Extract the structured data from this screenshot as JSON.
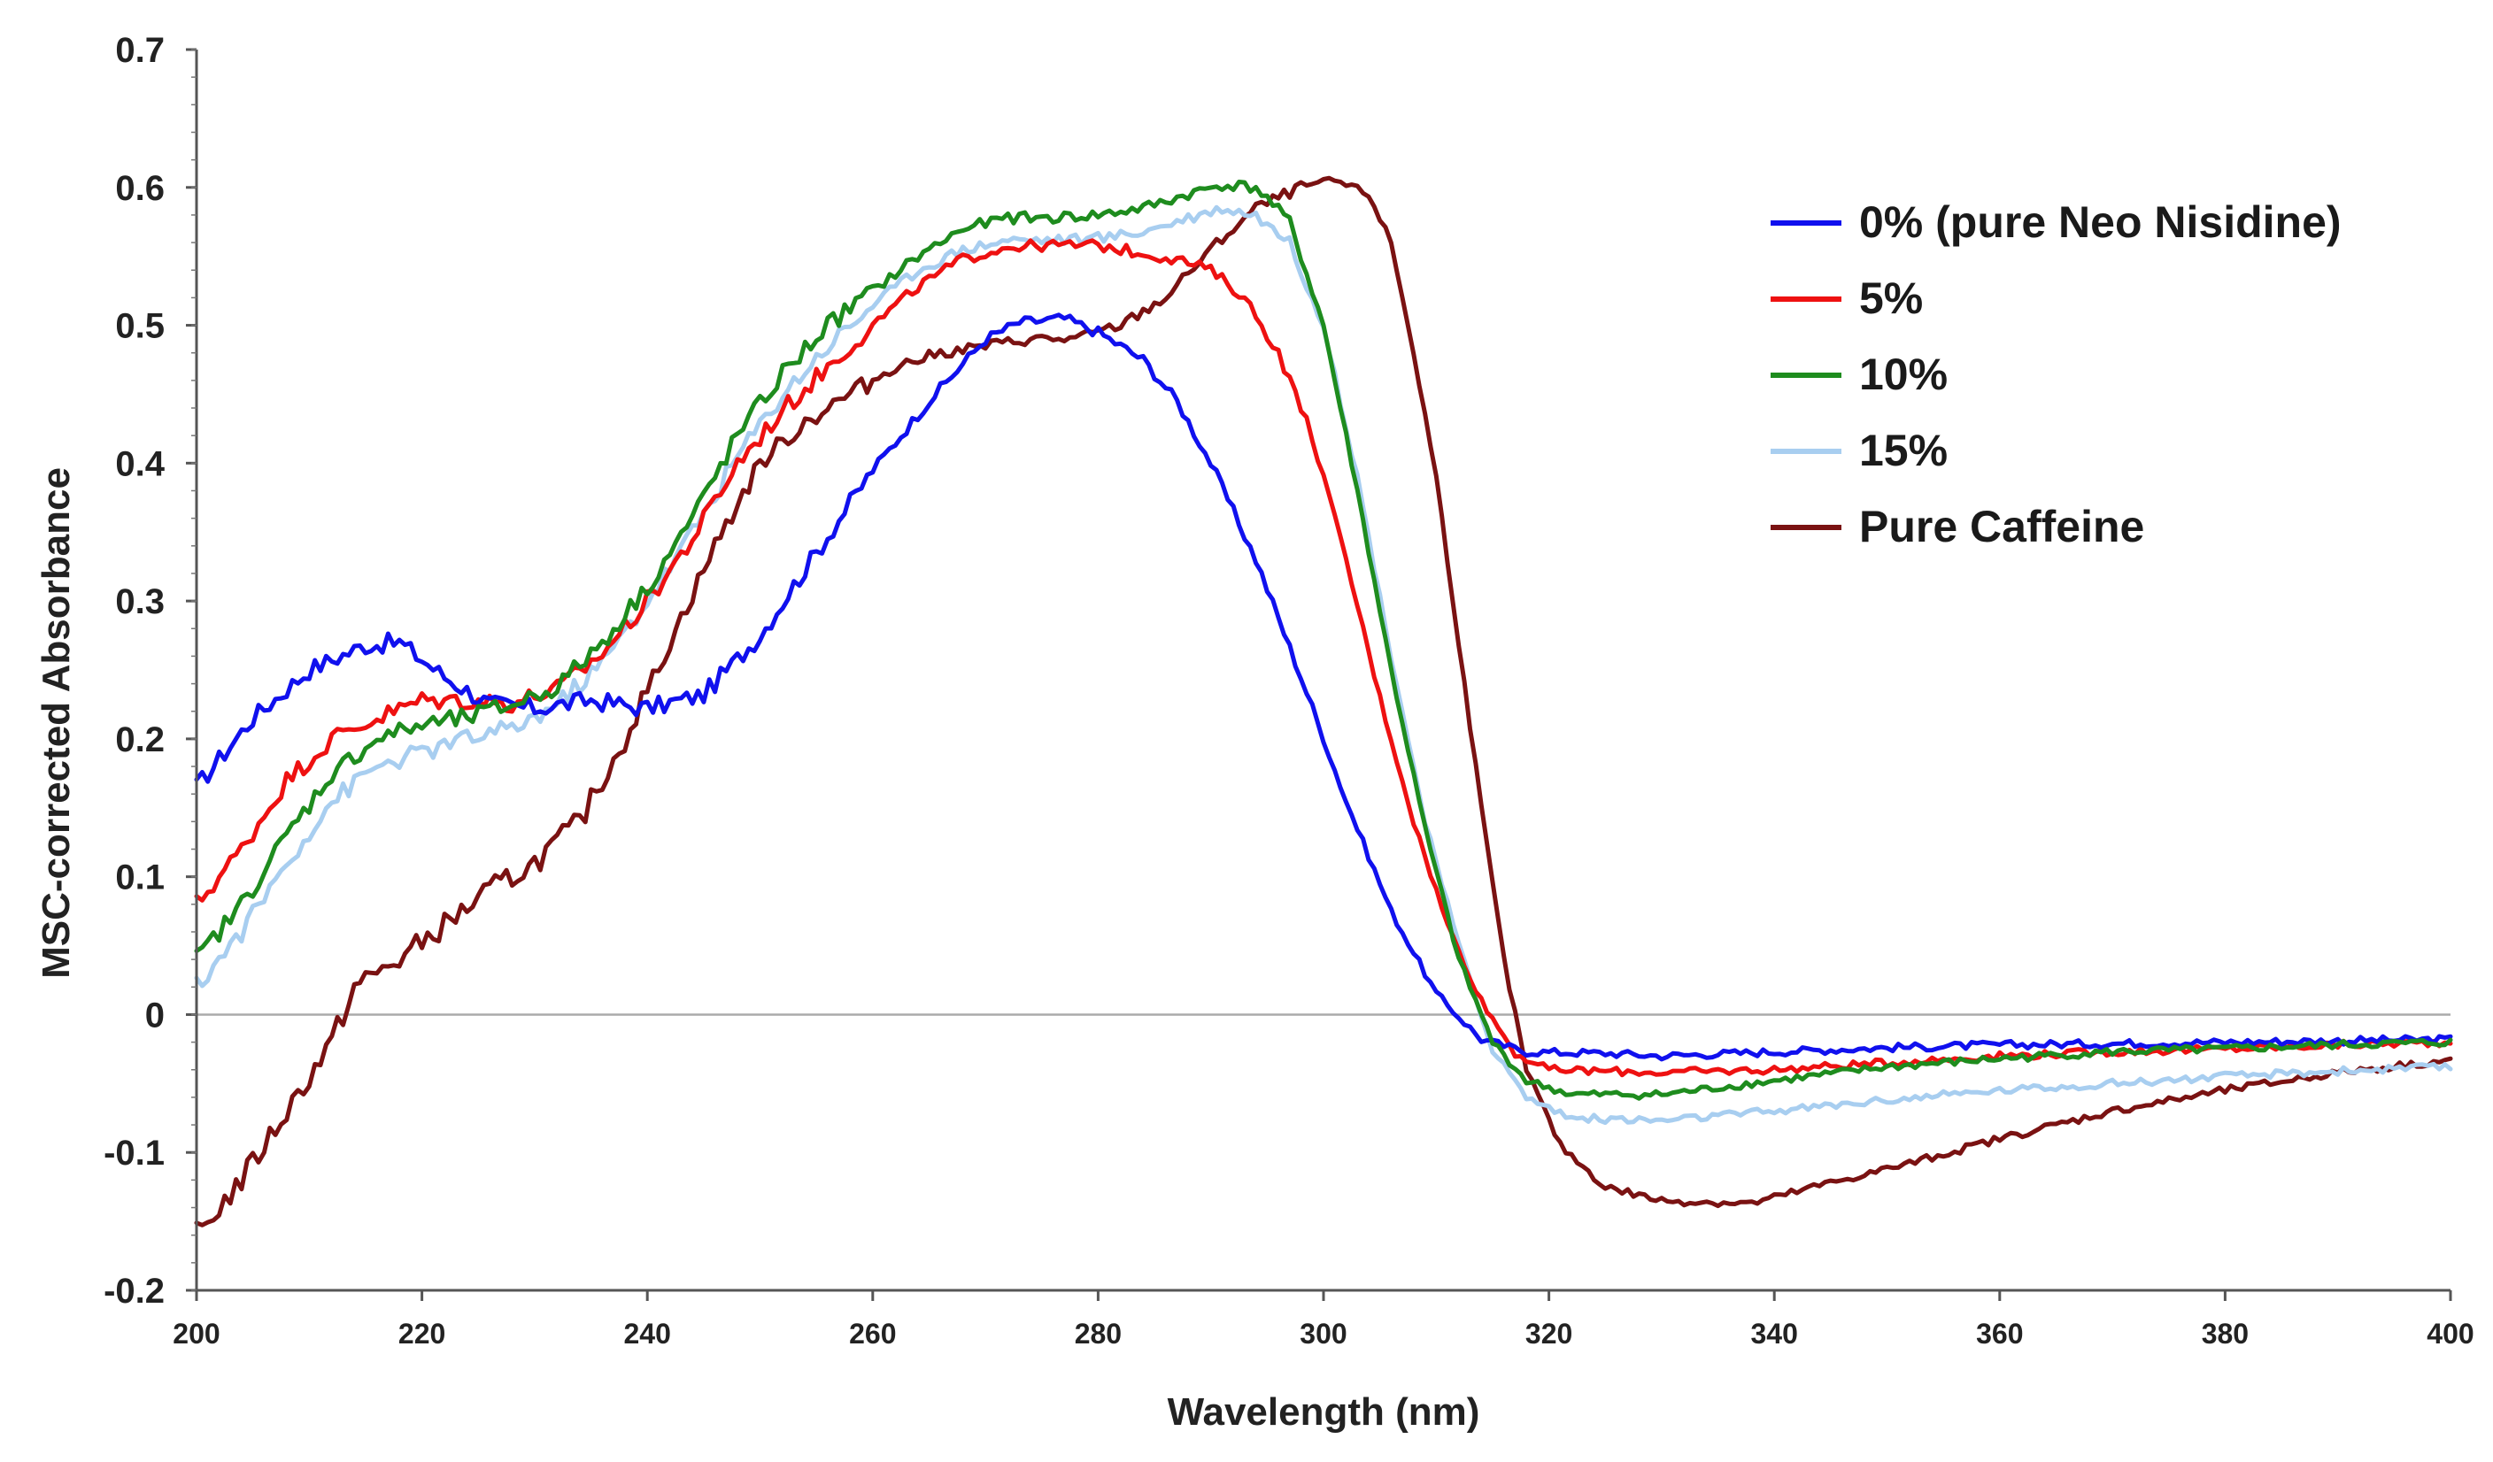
{
  "chart_data": {
    "type": "line",
    "title": "",
    "xlabel": "Wavelength (nm)",
    "ylabel": "MSC-corrected Absorbance",
    "xlim": [
      200,
      400
    ],
    "ylim": [
      -0.2,
      0.7
    ],
    "xticks": [
      200,
      220,
      240,
      260,
      280,
      300,
      320,
      340,
      360,
      380,
      400
    ],
    "yticks": [
      -0.2,
      -0.1,
      0,
      0.1,
      0.2,
      0.3,
      0.4,
      0.5,
      0.6,
      0.7
    ],
    "ytick_labels": [
      "-0.2",
      "-0.1",
      "0",
      "0.1",
      "0.2",
      "0.3",
      "0.4",
      "0.5",
      "0.6",
      "0.7"
    ],
    "zero_line": true,
    "legend_position": "top-right",
    "series": [
      {
        "name": "0% (pure Neo Nisidine)",
        "color": "#1010ee",
        "points": [
          [
            200,
            0.165
          ],
          [
            205,
            0.215
          ],
          [
            210,
            0.25
          ],
          [
            215,
            0.268
          ],
          [
            218,
            0.27
          ],
          [
            222,
            0.245
          ],
          [
            226,
            0.225
          ],
          [
            230,
            0.222
          ],
          [
            235,
            0.228
          ],
          [
            240,
            0.222
          ],
          [
            245,
            0.232
          ],
          [
            250,
            0.275
          ],
          [
            255,
            0.335
          ],
          [
            260,
            0.395
          ],
          [
            265,
            0.445
          ],
          [
            270,
            0.49
          ],
          [
            273,
            0.502
          ],
          [
            277,
            0.505
          ],
          [
            280,
            0.495
          ],
          [
            284,
            0.475
          ],
          [
            287,
            0.445
          ],
          [
            290,
            0.4
          ],
          [
            294,
            0.33
          ],
          [
            298,
            0.245
          ],
          [
            302,
            0.155
          ],
          [
            306,
            0.075
          ],
          [
            310,
            0.015
          ],
          [
            314,
            -0.018
          ],
          [
            318,
            -0.027
          ],
          [
            325,
            -0.028
          ],
          [
            330,
            -0.03
          ],
          [
            340,
            -0.027
          ],
          [
            350,
            -0.024
          ],
          [
            360,
            -0.022
          ],
          [
            370,
            -0.021
          ],
          [
            380,
            -0.02
          ],
          [
            390,
            -0.019
          ],
          [
            400,
            -0.018
          ]
        ]
      },
      {
        "name": "5%",
        "color": "#ee1111",
        "points": [
          [
            200,
            0.08
          ],
          [
            204,
            0.12
          ],
          [
            208,
            0.17
          ],
          [
            212,
            0.2
          ],
          [
            216,
            0.215
          ],
          [
            220,
            0.228
          ],
          [
            224,
            0.228
          ],
          [
            228,
            0.226
          ],
          [
            232,
            0.236
          ],
          [
            236,
            0.262
          ],
          [
            240,
            0.3
          ],
          [
            244,
            0.345
          ],
          [
            248,
            0.4
          ],
          [
            252,
            0.438
          ],
          [
            256,
            0.47
          ],
          [
            260,
            0.5
          ],
          [
            264,
            0.528
          ],
          [
            268,
            0.548
          ],
          [
            272,
            0.557
          ],
          [
            276,
            0.558
          ],
          [
            280,
            0.558
          ],
          [
            284,
            0.552
          ],
          [
            287,
            0.548
          ],
          [
            290,
            0.54
          ],
          [
            293,
            0.52
          ],
          [
            296,
            0.48
          ],
          [
            299,
            0.42
          ],
          [
            302,
            0.33
          ],
          [
            305,
            0.23
          ],
          [
            308,
            0.14
          ],
          [
            311,
            0.065
          ],
          [
            314,
            0.01
          ],
          [
            317,
            -0.028
          ],
          [
            320,
            -0.04
          ],
          [
            330,
            -0.042
          ],
          [
            340,
            -0.04
          ],
          [
            350,
            -0.035
          ],
          [
            360,
            -0.03
          ],
          [
            370,
            -0.027
          ],
          [
            380,
            -0.025
          ],
          [
            390,
            -0.022
          ],
          [
            400,
            -0.02
          ]
        ]
      },
      {
        "name": "10%",
        "color": "#1e8c1e",
        "points": [
          [
            200,
            0.04
          ],
          [
            204,
            0.08
          ],
          [
            208,
            0.13
          ],
          [
            212,
            0.175
          ],
          [
            216,
            0.2
          ],
          [
            220,
            0.21
          ],
          [
            224,
            0.215
          ],
          [
            228,
            0.225
          ],
          [
            232,
            0.238
          ],
          [
            236,
            0.27
          ],
          [
            240,
            0.31
          ],
          [
            244,
            0.36
          ],
          [
            248,
            0.42
          ],
          [
            252,
            0.465
          ],
          [
            256,
            0.5
          ],
          [
            260,
            0.525
          ],
          [
            264,
            0.55
          ],
          [
            268,
            0.57
          ],
          [
            272,
            0.578
          ],
          [
            276,
            0.578
          ],
          [
            280,
            0.58
          ],
          [
            284,
            0.585
          ],
          [
            288,
            0.595
          ],
          [
            291,
            0.602
          ],
          [
            294,
            0.6
          ],
          [
            297,
            0.575
          ],
          [
            300,
            0.5
          ],
          [
            303,
            0.38
          ],
          [
            306,
            0.25
          ],
          [
            309,
            0.135
          ],
          [
            312,
            0.04
          ],
          [
            315,
            -0.02
          ],
          [
            318,
            -0.048
          ],
          [
            322,
            -0.058
          ],
          [
            330,
            -0.058
          ],
          [
            340,
            -0.048
          ],
          [
            350,
            -0.038
          ],
          [
            360,
            -0.032
          ],
          [
            370,
            -0.027
          ],
          [
            380,
            -0.025
          ],
          [
            390,
            -0.022
          ],
          [
            400,
            -0.02
          ]
        ]
      },
      {
        "name": "15%",
        "color": "#a8cef0",
        "points": [
          [
            200,
            0.02
          ],
          [
            204,
            0.06
          ],
          [
            208,
            0.11
          ],
          [
            212,
            0.155
          ],
          [
            216,
            0.18
          ],
          [
            220,
            0.19
          ],
          [
            224,
            0.2
          ],
          [
            228,
            0.207
          ],
          [
            232,
            0.225
          ],
          [
            236,
            0.255
          ],
          [
            240,
            0.3
          ],
          [
            244,
            0.35
          ],
          [
            248,
            0.405
          ],
          [
            252,
            0.45
          ],
          [
            256,
            0.485
          ],
          [
            260,
            0.515
          ],
          [
            264,
            0.54
          ],
          [
            268,
            0.555
          ],
          [
            272,
            0.562
          ],
          [
            276,
            0.562
          ],
          [
            280,
            0.563
          ],
          [
            284,
            0.568
          ],
          [
            288,
            0.578
          ],
          [
            291,
            0.585
          ],
          [
            294,
            0.58
          ],
          [
            297,
            0.56
          ],
          [
            300,
            0.5
          ],
          [
            303,
            0.39
          ],
          [
            306,
            0.26
          ],
          [
            309,
            0.14
          ],
          [
            312,
            0.05
          ],
          [
            315,
            -0.025
          ],
          [
            318,
            -0.06
          ],
          [
            322,
            -0.075
          ],
          [
            330,
            -0.077
          ],
          [
            340,
            -0.07
          ],
          [
            350,
            -0.062
          ],
          [
            360,
            -0.055
          ],
          [
            370,
            -0.05
          ],
          [
            380,
            -0.045
          ],
          [
            390,
            -0.041
          ],
          [
            400,
            -0.038
          ]
        ]
      },
      {
        "name": "Pure Caffeine",
        "color": "#7a1212",
        "points": [
          [
            200,
            -0.16
          ],
          [
            204,
            -0.12
          ],
          [
            208,
            -0.07
          ],
          [
            212,
            -0.02
          ],
          [
            214,
            0.02
          ],
          [
            218,
            0.04
          ],
          [
            222,
            0.065
          ],
          [
            226,
            0.09
          ],
          [
            230,
            0.11
          ],
          [
            234,
            0.14
          ],
          [
            238,
            0.2
          ],
          [
            242,
            0.27
          ],
          [
            246,
            0.34
          ],
          [
            250,
            0.4
          ],
          [
            254,
            0.43
          ],
          [
            258,
            0.45
          ],
          [
            262,
            0.47
          ],
          [
            266,
            0.48
          ],
          [
            270,
            0.485
          ],
          [
            274,
            0.49
          ],
          [
            278,
            0.49
          ],
          [
            282,
            0.5
          ],
          [
            286,
            0.52
          ],
          [
            290,
            0.555
          ],
          [
            294,
            0.585
          ],
          [
            298,
            0.6
          ],
          [
            301,
            0.605
          ],
          [
            304,
            0.595
          ],
          [
            306,
            0.56
          ],
          [
            308,
            0.48
          ],
          [
            310,
            0.39
          ],
          [
            312,
            0.27
          ],
          [
            314,
            0.15
          ],
          [
            316,
            0.04
          ],
          [
            318,
            -0.04
          ],
          [
            321,
            -0.095
          ],
          [
            325,
            -0.125
          ],
          [
            330,
            -0.135
          ],
          [
            338,
            -0.137
          ],
          [
            345,
            -0.122
          ],
          [
            352,
            -0.108
          ],
          [
            360,
            -0.09
          ],
          [
            370,
            -0.07
          ],
          [
            380,
            -0.055
          ],
          [
            390,
            -0.042
          ],
          [
            400,
            -0.033
          ]
        ]
      }
    ]
  }
}
